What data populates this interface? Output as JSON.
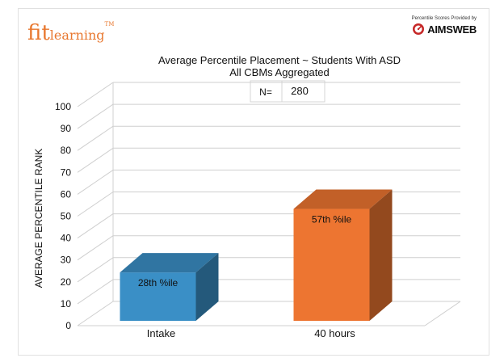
{
  "logo": {
    "fit": "fit",
    "learning": "learning",
    "tm": "TM"
  },
  "provider": {
    "caption": "Percentile Scores Provided by",
    "name": "AIMSWEB",
    "icon": "aimsweb-gauge-icon",
    "accent": "#c62828"
  },
  "chart_data": {
    "type": "bar",
    "title": "Average Percentile Placement ~ Students With ASD",
    "subtitle": "All CBMs Aggregated",
    "n_label": "N=",
    "n_value": "280",
    "ylabel": "AVERAGE PERCENTILE RANK",
    "xlabel": "",
    "categories": [
      "Intake",
      "40 hours"
    ],
    "values": [
      28,
      57
    ],
    "data_labels": [
      "28th %ile",
      "57th %ile"
    ],
    "colors": [
      "#3a8fc6",
      "#ed7531"
    ],
    "ylim": [
      0,
      100
    ],
    "yticks": [
      "0",
      "10",
      "20",
      "30",
      "40",
      "50",
      "60",
      "70",
      "80",
      "90",
      "100"
    ],
    "grid": true,
    "style": "3d-column"
  }
}
